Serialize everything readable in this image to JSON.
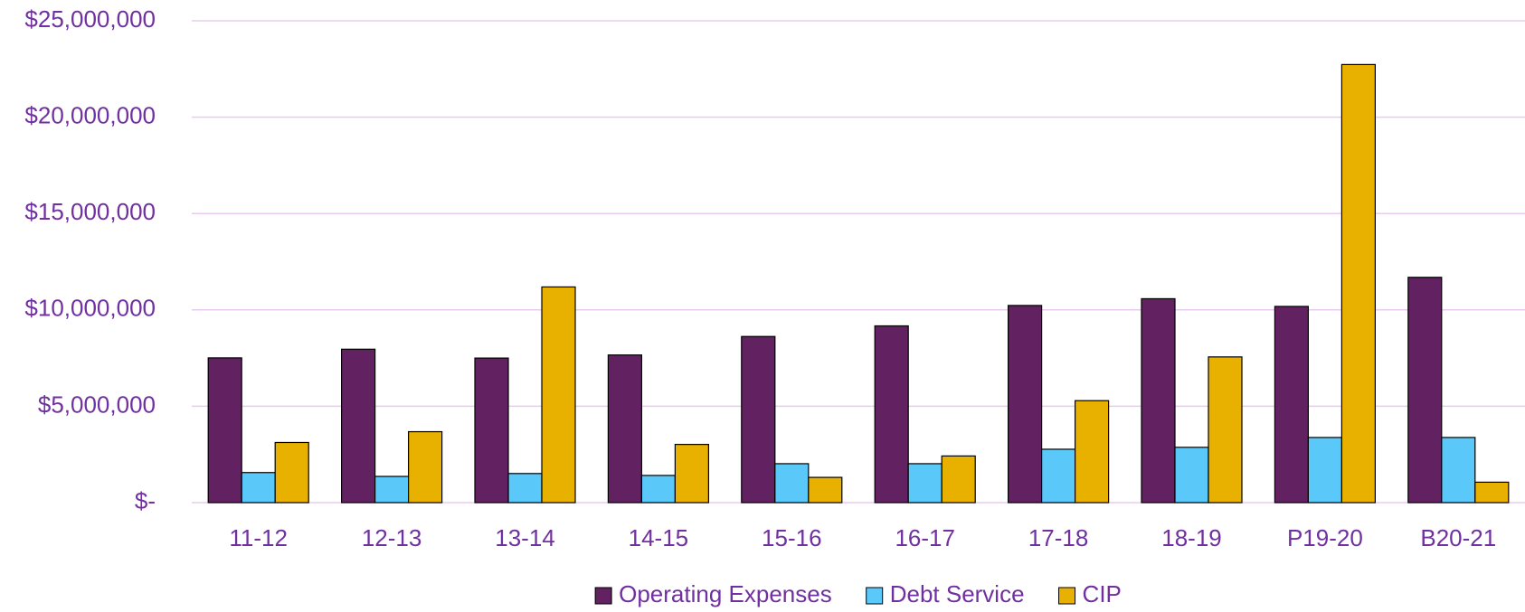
{
  "chart_data": {
    "type": "bar",
    "categories": [
      "11-12",
      "12-13",
      "13-14",
      "14-15",
      "15-16",
      "16-17",
      "17-18",
      "18-19",
      "P19-20",
      "B20-21"
    ],
    "series": [
      {
        "name": "Operating Expenses",
        "color": "#622261",
        "values": [
          7510000,
          7960000,
          7500000,
          7660000,
          8620000,
          9170000,
          10230000,
          10580000,
          10180000,
          11690000
        ]
      },
      {
        "name": "Debt Service",
        "color": "#5bc8fa",
        "values": [
          1560000,
          1360000,
          1510000,
          1410000,
          2020000,
          2020000,
          2770000,
          2870000,
          3380000,
          3380000
        ]
      },
      {
        "name": "CIP",
        "color": "#e8b100",
        "values": [
          3120000,
          3680000,
          11190000,
          3020000,
          1310000,
          2420000,
          5290000,
          7560000,
          22730000,
          1060000
        ]
      }
    ],
    "ylim": [
      0,
      25000000
    ],
    "yticks": [
      {
        "value": 0,
        "label": "$-"
      },
      {
        "value": 5000000,
        "label": "$5,000,000"
      },
      {
        "value": 10000000,
        "label": "$10,000,000"
      },
      {
        "value": 15000000,
        "label": "$15,000,000"
      },
      {
        "value": 20000000,
        "label": "$20,000,000"
      },
      {
        "value": 25000000,
        "label": "$25,000,000"
      }
    ],
    "grid": true,
    "legend": "bottom"
  }
}
